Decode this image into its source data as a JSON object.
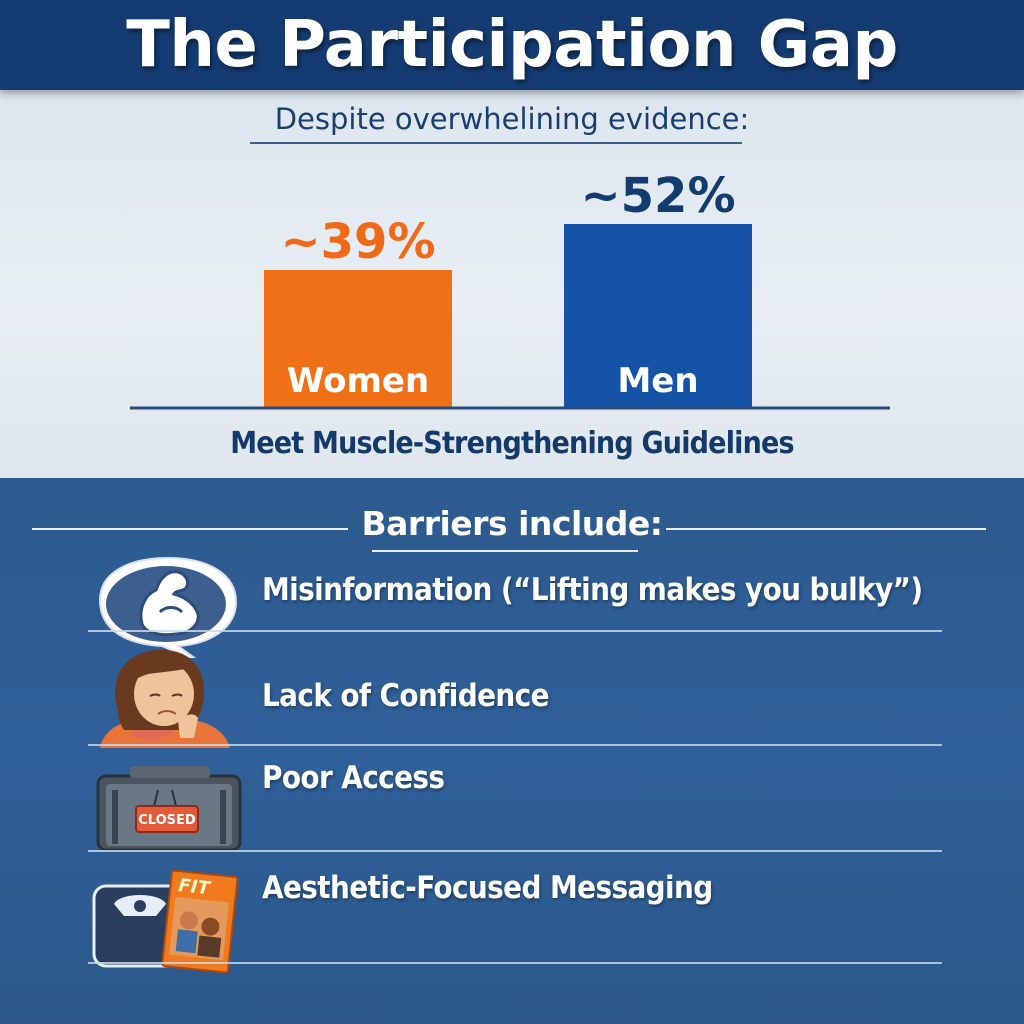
{
  "title": "The Participation Gap",
  "subtitle": "Despite overwhelining evidence:",
  "chart_data": {
    "type": "bar",
    "title": "The Participation Gap",
    "subtitle": "Despite overwhelining evidence:",
    "categories": [
      "Women",
      "Men"
    ],
    "values": [
      39,
      52
    ],
    "value_labels": [
      "~39%",
      "~52%"
    ],
    "xlabel": "Meet Muscle-Strengthening Guidelines",
    "ylabel": "",
    "colors": [
      "#f07018",
      "#1553a6"
    ],
    "value_label_colors": [
      "#ef6a17",
      "#123b70"
    ],
    "grid": false,
    "legend": "none"
  },
  "barriers": {
    "heading": "Barriers include:",
    "items": [
      {
        "label": "Misinformation (“Lifting makes you bulky”)",
        "icon": "flexed-bicep-speech-bubble-icon"
      },
      {
        "label": "Lack of Confidence",
        "icon": "worried-woman-icon"
      },
      {
        "label": "Poor Access",
        "icon": "closed-gym-icon",
        "icon_text": "CLOSED"
      },
      {
        "label": "Aesthetic-Focused Messaging",
        "icon": "bathroom-scale-magazine-icon",
        "icon_text": "FIT"
      }
    ]
  },
  "colors": {
    "header_bg": "#143c73",
    "chart_bg": "#e3eaf2",
    "barriers_bg": "#2f5d92"
  }
}
